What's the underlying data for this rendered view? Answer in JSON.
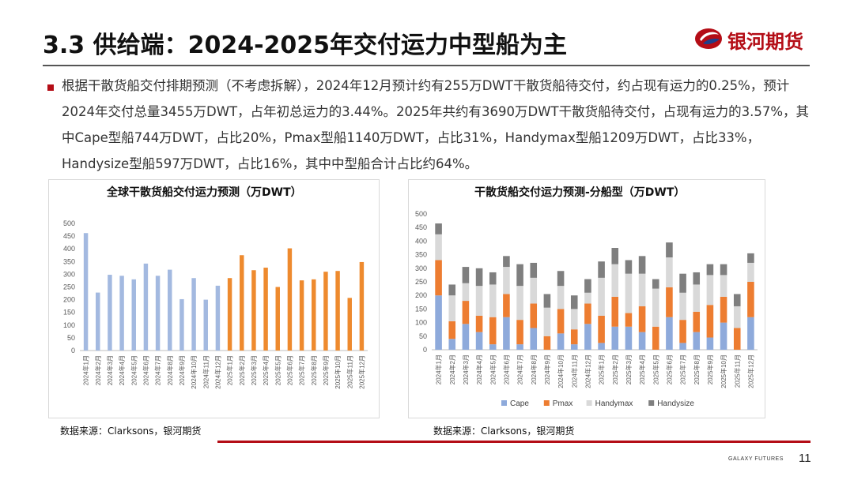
{
  "header": {
    "title": "3.3 供给端：2024-2025年交付运力中型船为主",
    "logo_text": "银河期货",
    "logo_color": "#b40d16"
  },
  "body": {
    "paragraph": "根据干散货船交付排期预测（不考虑拆解），2024年12月预计约有255万DWT干散货船待交付，约占现有运力的0.25%，预计2024年交付总量3455万DWT，占年初总运力的3.44%。2025年共约有3690万DWT干散货船待交付，占现有运力的3.57%，其中Cape型船744万DWT，占比20%，Pmax型船1140万DWT，占比31%，Handymax型船1209万DWT，占比33%，Handysize型船597万DWT，占比16%，其中中型船合计占比约64%。"
  },
  "chart_data": [
    {
      "type": "bar",
      "title": "全球干散货船交付运力预测（万DWT）",
      "categories": [
        "2024年1月",
        "2024年2月",
        "2024年3月",
        "2024年4月",
        "2024年5月",
        "2024年6月",
        "2024年7月",
        "2024年8月",
        "2024年9月",
        "2024年10月",
        "2024年11月",
        "2024年12月",
        "2025年1月",
        "2025年2月",
        "2025年3月",
        "2025年4月",
        "2025年5月",
        "2025年6月",
        "2025年7月",
        "2025年8月",
        "2025年9月",
        "2025年10月",
        "2025年11月",
        "2025年12月"
      ],
      "values": [
        462,
        228,
        298,
        294,
        280,
        342,
        294,
        318,
        202,
        285,
        200,
        255,
        285,
        375,
        316,
        326,
        250,
        402,
        276,
        280,
        310,
        313,
        207,
        348
      ],
      "colors_2024": "#a3b9e0",
      "colors_2025": "#ee8a2e",
      "ylim": [
        0,
        500
      ],
      "yticks": [
        "0",
        "50",
        "100",
        "150",
        "200",
        "250",
        "300",
        "350",
        "400",
        "450",
        "500"
      ],
      "legend": "none",
      "grid": false
    },
    {
      "type": "bar",
      "stacked": true,
      "title": "干散货船交付运力预测-分船型（万DWT）",
      "categories": [
        "2024年1月",
        "2024年2月",
        "2024年3月",
        "2024年4月",
        "2024年5月",
        "2024年6月",
        "2024年7月",
        "2024年8月",
        "2024年9月",
        "2024年10月",
        "2024年11月",
        "2024年12月",
        "2025年1月",
        "2025年2月",
        "2025年3月",
        "2025年4月",
        "2025年5月",
        "2025年6月",
        "2025年7月",
        "2025年8月",
        "2025年9月",
        "2025年10月",
        "2025年11月",
        "2025年12月"
      ],
      "series": [
        {
          "name": "Cape",
          "color": "#8eaadb",
          "values": [
            200,
            40,
            95,
            65,
            20,
            120,
            20,
            80,
            0,
            60,
            20,
            95,
            25,
            85,
            85,
            65,
            0,
            120,
            25,
            65,
            45,
            100,
            0,
            120
          ]
        },
        {
          "name": "Pmax",
          "color": "#ed7d31",
          "values": [
            130,
            65,
            85,
            60,
            100,
            85,
            90,
            90,
            50,
            90,
            55,
            75,
            100,
            110,
            50,
            95,
            85,
            110,
            85,
            75,
            120,
            95,
            80,
            130
          ]
        },
        {
          "name": "Handymax",
          "color": "#d9d9d9",
          "values": [
            95,
            95,
            65,
            110,
            120,
            100,
            125,
            95,
            105,
            85,
            75,
            40,
            140,
            120,
            145,
            120,
            140,
            110,
            100,
            100,
            110,
            80,
            80,
            70
          ]
        },
        {
          "name": "Handysize",
          "color": "#7f7f7f",
          "values": [
            40,
            40,
            60,
            65,
            45,
            40,
            80,
            55,
            50,
            55,
            50,
            50,
            60,
            60,
            50,
            65,
            35,
            55,
            70,
            45,
            40,
            40,
            45,
            35
          ]
        }
      ],
      "ylim": [
        0,
        500
      ],
      "yticks": [
        "0",
        "50",
        "100",
        "150",
        "200",
        "250",
        "300",
        "350",
        "400",
        "450",
        "500"
      ],
      "legend": "bottom",
      "grid": false
    }
  ],
  "sources": {
    "left": "数据来源：Clarksons，银河期货",
    "right": "数据来源：Clarksons，银河期货"
  },
  "footer": {
    "brand": "GALAXY FUTURES",
    "page": "11"
  }
}
